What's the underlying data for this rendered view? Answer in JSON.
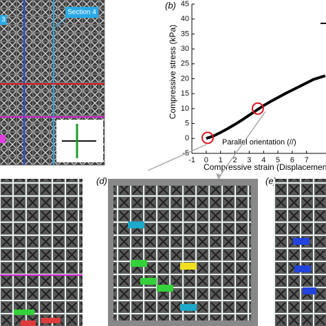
{
  "panels": {
    "b": "(b)",
    "d": "(d)",
    "e": "(e)"
  },
  "lattice_labels": {
    "section_left": "3",
    "section_right": "Section 4"
  },
  "chart_data": {
    "type": "line",
    "x_label": "Compressive strain (Displacement",
    "y_label": "Compressive stress (kPa)",
    "annotation": "Parallel orientation (//)",
    "x": [
      0,
      0.5,
      1,
      1.5,
      2,
      2.5,
      3,
      3.5,
      4,
      4.5,
      5,
      5.5,
      6,
      6.5,
      7,
      7.5,
      8.3
    ],
    "series": [
      {
        "color": "#000000",
        "values": [
          0,
          0.8,
          2,
          3.3,
          4.7,
          6.2,
          7.8,
          9.4,
          11,
          12.4,
          13.7,
          15,
          16.2,
          17.4,
          18.6,
          19.8,
          21
        ]
      }
    ],
    "highlights": {
      "x": [
        0.1,
        3.6
      ],
      "y": [
        0.2,
        10
      ],
      "color": "#e0141e"
    },
    "xlim": [
      -1,
      8.5
    ],
    "ylim": [
      -5,
      45
    ],
    "xticks": [
      -1,
      0,
      1,
      2,
      3,
      4,
      5,
      6,
      7
    ],
    "yticks": [
      -5,
      0,
      5,
      10,
      15,
      20,
      25,
      30,
      35,
      40,
      45
    ]
  }
}
